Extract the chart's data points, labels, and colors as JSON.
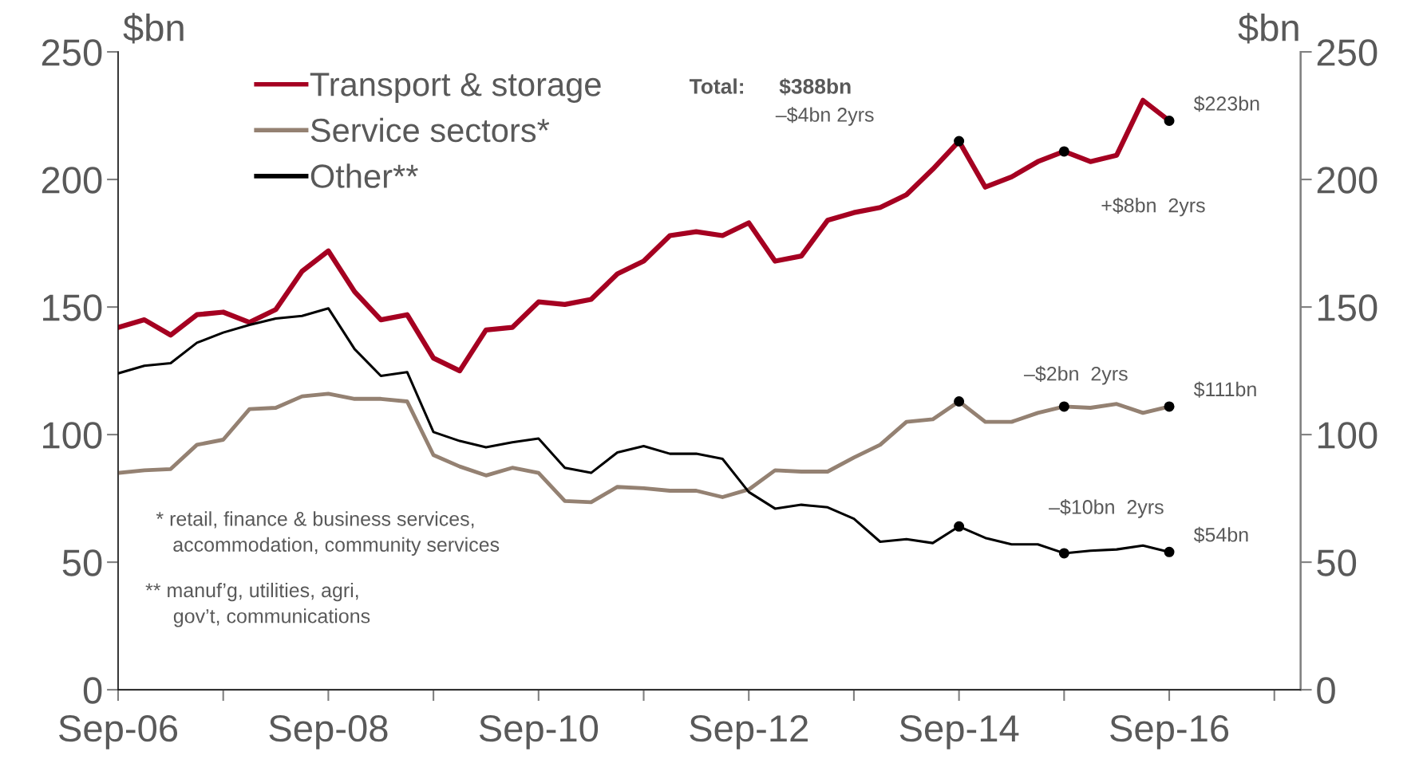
{
  "chart_data": {
    "type": "line",
    "ylabel": "$bn",
    "y2label": "$bn",
    "x": [
      "2006-09",
      "2006-12",
      "2007-03",
      "2007-06",
      "2007-09",
      "2007-12",
      "2008-03",
      "2008-06",
      "2008-09",
      "2008-12",
      "2009-03",
      "2009-06",
      "2009-09",
      "2009-12",
      "2010-03",
      "2010-06",
      "2010-09",
      "2010-12",
      "2011-03",
      "2011-06",
      "2011-09",
      "2011-12",
      "2012-03",
      "2012-06",
      "2012-09",
      "2012-12",
      "2013-03",
      "2013-06",
      "2013-09",
      "2013-12",
      "2014-03",
      "2014-06",
      "2014-09",
      "2014-12",
      "2015-03",
      "2015-06",
      "2015-09",
      "2015-12",
      "2016-03",
      "2016-06",
      "2016-09"
    ],
    "series": [
      {
        "name": "Transport & storage",
        "color": "#a50021",
        "values": [
          142,
          145,
          139,
          147,
          148,
          144,
          149,
          164,
          172,
          156,
          145,
          147,
          130,
          125,
          141,
          142,
          152,
          151,
          153,
          163,
          168,
          178,
          179.5,
          178,
          183,
          168,
          170,
          184,
          187,
          189,
          194,
          204,
          215,
          197,
          201,
          207,
          211,
          207,
          209.5,
          231,
          223
        ]
      },
      {
        "name": "Service sectors*",
        "color": "#948172",
        "values": [
          85,
          86,
          86.5,
          96,
          98,
          110,
          110.5,
          115,
          116,
          114,
          114,
          113,
          92,
          87.5,
          84,
          87,
          85,
          74,
          73.5,
          79.5,
          79,
          78,
          78,
          75.5,
          78.5,
          86,
          85.5,
          85.5,
          91,
          96,
          105,
          106,
          113,
          105,
          105,
          108.5,
          111,
          110.5,
          112,
          108.5,
          111
        ]
      },
      {
        "name": "Other**",
        "color": "#000000",
        "values": [
          124,
          127,
          128,
          136,
          140,
          143,
          145.5,
          146.5,
          149.5,
          133.5,
          123,
          124.5,
          101,
          97.5,
          95,
          97,
          98.5,
          87,
          85,
          93,
          95.5,
          92.5,
          92.5,
          90.5,
          77.5,
          71,
          72.5,
          71.5,
          67,
          58,
          59,
          57.5,
          64,
          59.5,
          57,
          57,
          53.5,
          54.5,
          55,
          56.5,
          54
        ]
      },
      {
        "type": "scatter",
        "color": "#000000",
        "marker": "circle",
        "x": [
          "2014-09",
          "2015-09",
          "2016-09"
        ],
        "values": [
          215,
          211,
          223
        ]
      },
      {
        "type": "scatter",
        "color": "#000000",
        "marker": "circle",
        "x": [
          "2014-09",
          "2015-09",
          "2016-09"
        ],
        "values": [
          113,
          111,
          111
        ]
      },
      {
        "type": "scatter",
        "color": "#000000",
        "marker": "circle",
        "x": [
          "2014-09",
          "2015-09",
          "2016-09"
        ],
        "values": [
          64,
          53.5,
          54
        ]
      }
    ],
    "xlim": [
      "2006-09",
      "2017-12"
    ],
    "xticks": [
      {
        "value": "2006-09",
        "label": "Sep-06"
      },
      {
        "value": "2007-09",
        "label": null
      },
      {
        "value": "2008-09",
        "label": "Sep-08"
      },
      {
        "value": "2009-09",
        "label": null
      },
      {
        "value": "2010-09",
        "label": "Sep-10"
      },
      {
        "value": "2011-09",
        "label": null
      },
      {
        "value": "2012-09",
        "label": "Sep-12"
      },
      {
        "value": "2013-09",
        "label": null
      },
      {
        "value": "2014-09",
        "label": "Sep-14"
      },
      {
        "value": "2015-09",
        "label": null
      },
      {
        "value": "2016-09",
        "label": "Sep-16"
      },
      {
        "value": "2017-09",
        "label": null
      }
    ],
    "ylim": [
      0,
      250
    ],
    "yticks": [
      0,
      50,
      100,
      150,
      200,
      250
    ],
    "y2lim": [
      0,
      250
    ],
    "y2ticks": [
      0,
      50,
      100,
      150,
      200,
      250
    ],
    "legend": "top left",
    "grid": false,
    "marker": "none",
    "line_style": "solid",
    "annotations": [
      "Total:",
      "$388bn",
      "–$4bn 2yrs",
      "+$8bn  2yrs",
      "–$2bn  2yrs",
      "–$10bn  2yrs",
      "* retail, finance & business services,\n   accommodation, community services",
      "** manuf’g, utilities, agri,\n     gov’t, communications",
      {
        "text": "$223bn",
        "x": "2016-09",
        "y": 223
      },
      {
        "text": "$111bn",
        "x": "2016-09",
        "y": 111
      },
      {
        "text": "$54bn",
        "x": "2016-09",
        "y": 54
      }
    ]
  }
}
